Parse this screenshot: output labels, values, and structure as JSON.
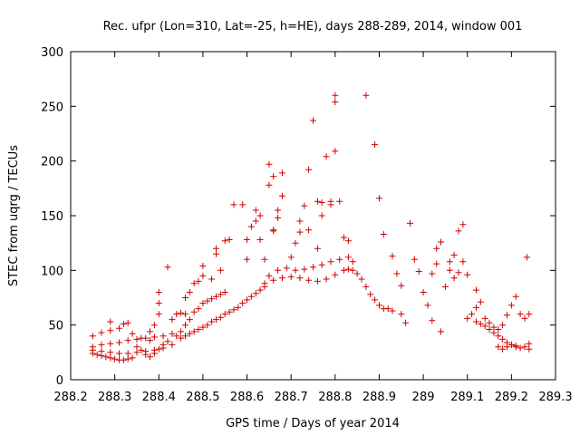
{
  "chart_data": {
    "type": "scatter",
    "title": "Rec. ufpr (Lon=310, Lat=-25, h=HE), days 288-289, 2014, window 001",
    "xlabel": "GPS time / Days of year 2014",
    "ylabel": "STEC from uqrg / TECUs",
    "xlim": [
      288.2,
      289.3
    ],
    "ylim": [
      0,
      300
    ],
    "xticks": [
      288.2,
      288.3,
      288.4,
      288.5,
      288.6,
      288.7,
      288.8,
      288.9,
      289,
      289.1,
      289.2,
      289.3
    ],
    "xtick_labels": [
      "288.2",
      "288.3",
      "288.4",
      "288.5",
      "288.6",
      "288.7",
      "288.8",
      "288.9",
      "289",
      "289.1",
      "289.2",
      "289.3"
    ],
    "yticks": [
      0,
      50,
      100,
      150,
      200,
      250,
      300
    ],
    "ytick_labels": [
      "0",
      "50",
      "100",
      "150",
      "200",
      "250",
      "300"
    ],
    "marker": "+",
    "color": "#d00000",
    "series": [
      {
        "name": "STEC",
        "points": [
          [
            288.25,
            24
          ],
          [
            288.26,
            23
          ],
          [
            288.27,
            22
          ],
          [
            288.28,
            21
          ],
          [
            288.29,
            20
          ],
          [
            288.3,
            19
          ],
          [
            288.31,
            18
          ],
          [
            288.32,
            18
          ],
          [
            288.33,
            19
          ],
          [
            288.34,
            20
          ],
          [
            288.25,
            27
          ],
          [
            288.27,
            26
          ],
          [
            288.29,
            25
          ],
          [
            288.31,
            24
          ],
          [
            288.33,
            24
          ],
          [
            288.35,
            25
          ],
          [
            288.37,
            26
          ],
          [
            288.39,
            27
          ],
          [
            288.41,
            29
          ],
          [
            288.43,
            32
          ],
          [
            288.25,
            30
          ],
          [
            288.27,
            32
          ],
          [
            288.29,
            33
          ],
          [
            288.31,
            34
          ],
          [
            288.33,
            36
          ],
          [
            288.35,
            37
          ],
          [
            288.37,
            38
          ],
          [
            288.39,
            39
          ],
          [
            288.41,
            40
          ],
          [
            288.43,
            42
          ],
          [
            288.25,
            40
          ],
          [
            288.27,
            43
          ],
          [
            288.29,
            45
          ],
          [
            288.29,
            53
          ],
          [
            288.31,
            47
          ],
          [
            288.32,
            51
          ],
          [
            288.33,
            52
          ],
          [
            288.34,
            42
          ],
          [
            288.36,
            38
          ],
          [
            288.38,
            36
          ],
          [
            288.35,
            30
          ],
          [
            288.36,
            27
          ],
          [
            288.37,
            23
          ],
          [
            288.38,
            21
          ],
          [
            288.39,
            24
          ],
          [
            288.4,
            28
          ],
          [
            288.41,
            32
          ],
          [
            288.42,
            35
          ],
          [
            288.44,
            40
          ],
          [
            288.45,
            44
          ],
          [
            288.38,
            44
          ],
          [
            288.39,
            50
          ],
          [
            288.4,
            60
          ],
          [
            288.4,
            70
          ],
          [
            288.4,
            80
          ],
          [
            288.42,
            103
          ],
          [
            288.43,
            55
          ],
          [
            288.44,
            60
          ],
          [
            288.45,
            61
          ],
          [
            288.46,
            60
          ],
          [
            288.45,
            38
          ],
          [
            288.46,
            40
          ],
          [
            288.47,
            42
          ],
          [
            288.48,
            44
          ],
          [
            288.49,
            46
          ],
          [
            288.5,
            48
          ],
          [
            288.51,
            50
          ],
          [
            288.52,
            53
          ],
          [
            288.53,
            55
          ],
          [
            288.54,
            57
          ],
          [
            288.46,
            50
          ],
          [
            288.47,
            55
          ],
          [
            288.48,
            62
          ],
          [
            288.49,
            65
          ],
          [
            288.5,
            70
          ],
          [
            288.51,
            72
          ],
          [
            288.52,
            74
          ],
          [
            288.53,
            76
          ],
          [
            288.54,
            78
          ],
          [
            288.55,
            80
          ],
          [
            288.46,
            75
          ],
          [
            288.47,
            80
          ],
          [
            288.48,
            88
          ],
          [
            288.49,
            90
          ],
          [
            288.5,
            95
          ],
          [
            288.5,
            104
          ],
          [
            288.52,
            92
          ],
          [
            288.53,
            115
          ],
          [
            288.53,
            120
          ],
          [
            288.54,
            100
          ],
          [
            288.55,
            60
          ],
          [
            288.56,
            62
          ],
          [
            288.57,
            64
          ],
          [
            288.58,
            66
          ],
          [
            288.59,
            70
          ],
          [
            288.6,
            73
          ],
          [
            288.61,
            76
          ],
          [
            288.62,
            79
          ],
          [
            288.63,
            82
          ],
          [
            288.64,
            85
          ],
          [
            288.55,
            127
          ],
          [
            288.56,
            128
          ],
          [
            288.57,
            160
          ],
          [
            288.59,
            160
          ],
          [
            288.6,
            110
          ],
          [
            288.6,
            128
          ],
          [
            288.61,
            140
          ],
          [
            288.62,
            145
          ],
          [
            288.62,
            155
          ],
          [
            288.63,
            150
          ],
          [
            288.63,
            128
          ],
          [
            288.64,
            110
          ],
          [
            288.65,
            178
          ],
          [
            288.65,
            197
          ],
          [
            288.66,
            186
          ],
          [
            288.66,
            137
          ],
          [
            288.66,
            136
          ],
          [
            288.67,
            148
          ],
          [
            288.67,
            155
          ],
          [
            288.68,
            189
          ],
          [
            288.64,
            88
          ],
          [
            288.66,
            91
          ],
          [
            288.68,
            93
          ],
          [
            288.7,
            94
          ],
          [
            288.72,
            93
          ],
          [
            288.74,
            91
          ],
          [
            288.76,
            90
          ],
          [
            288.78,
            92
          ],
          [
            288.8,
            96
          ],
          [
            288.82,
            100
          ],
          [
            288.65,
            95
          ],
          [
            288.67,
            100
          ],
          [
            288.69,
            102
          ],
          [
            288.71,
            100
          ],
          [
            288.73,
            101
          ],
          [
            288.75,
            103
          ],
          [
            288.77,
            105
          ],
          [
            288.79,
            108
          ],
          [
            288.81,
            110
          ],
          [
            288.83,
            112
          ],
          [
            288.68,
            168
          ],
          [
            288.7,
            112
          ],
          [
            288.71,
            125
          ],
          [
            288.72,
            135
          ],
          [
            288.72,
            145
          ],
          [
            288.73,
            159
          ],
          [
            288.74,
            137
          ],
          [
            288.74,
            192
          ],
          [
            288.75,
            237
          ],
          [
            288.76,
            163
          ],
          [
            288.76,
            120
          ],
          [
            288.77,
            150
          ],
          [
            288.77,
            162
          ],
          [
            288.78,
            204
          ],
          [
            288.79,
            160
          ],
          [
            288.79,
            163
          ],
          [
            288.8,
            254
          ],
          [
            288.8,
            260
          ],
          [
            288.8,
            209
          ],
          [
            288.81,
            163
          ],
          [
            288.83,
            101
          ],
          [
            288.84,
            100
          ],
          [
            288.85,
            97
          ],
          [
            288.86,
            92
          ],
          [
            288.87,
            85
          ],
          [
            288.88,
            78
          ],
          [
            288.89,
            73
          ],
          [
            288.9,
            68
          ],
          [
            288.91,
            65
          ],
          [
            288.92,
            65
          ],
          [
            288.82,
            130
          ],
          [
            288.83,
            127
          ],
          [
            288.84,
            108
          ],
          [
            288.87,
            260
          ],
          [
            288.89,
            215
          ],
          [
            288.9,
            166
          ],
          [
            288.91,
            133
          ],
          [
            288.93,
            113
          ],
          [
            288.94,
            97
          ],
          [
            288.95,
            86
          ],
          [
            288.93,
            63
          ],
          [
            288.95,
            60
          ],
          [
            288.96,
            52
          ],
          [
            288.97,
            143
          ],
          [
            288.98,
            110
          ],
          [
            288.99,
            99
          ],
          [
            289.0,
            80
          ],
          [
            289.01,
            68
          ],
          [
            289.02,
            97
          ],
          [
            289.03,
            106
          ],
          [
            289.02,
            54
          ],
          [
            289.03,
            120
          ],
          [
            289.04,
            126
          ],
          [
            289.04,
            44
          ],
          [
            289.05,
            85
          ],
          [
            289.06,
            108
          ],
          [
            289.06,
            100
          ],
          [
            289.07,
            114
          ],
          [
            289.07,
            93
          ],
          [
            289.08,
            136
          ],
          [
            289.08,
            98
          ],
          [
            289.09,
            142
          ],
          [
            289.09,
            108
          ],
          [
            289.1,
            96
          ],
          [
            289.1,
            56
          ],
          [
            289.11,
            60
          ],
          [
            289.12,
            66
          ],
          [
            289.12,
            82
          ],
          [
            289.13,
            71
          ],
          [
            289.14,
            56
          ],
          [
            289.12,
            53
          ],
          [
            289.13,
            51
          ],
          [
            289.14,
            49
          ],
          [
            289.15,
            46
          ],
          [
            289.16,
            43
          ],
          [
            289.17,
            40
          ],
          [
            289.18,
            37
          ],
          [
            289.19,
            34
          ],
          [
            289.2,
            32
          ],
          [
            289.21,
            31
          ],
          [
            289.15,
            52
          ],
          [
            289.16,
            48
          ],
          [
            289.17,
            46
          ],
          [
            289.18,
            50
          ],
          [
            289.19,
            59
          ],
          [
            289.2,
            68
          ],
          [
            289.21,
            76
          ],
          [
            289.22,
            60
          ],
          [
            289.23,
            56
          ],
          [
            289.24,
            60
          ],
          [
            289.17,
            30
          ],
          [
            289.18,
            28
          ],
          [
            289.19,
            30
          ],
          [
            289.2,
            32
          ],
          [
            289.21,
            30
          ],
          [
            289.22,
            29
          ],
          [
            289.23,
            30
          ],
          [
            289.235,
            112
          ],
          [
            289.24,
            33
          ],
          [
            289.24,
            28
          ]
        ]
      }
    ]
  }
}
